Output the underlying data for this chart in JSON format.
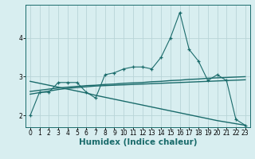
{
  "title": "",
  "xlabel": "Humidex (Indice chaleur)",
  "ylabel": "",
  "bg_color": "#d8eef0",
  "grid_color": "#b8d4d8",
  "line_color": "#1a6b6b",
  "x_values": [
    0,
    1,
    2,
    3,
    4,
    5,
    6,
    7,
    8,
    9,
    10,
    11,
    12,
    13,
    14,
    15,
    16,
    17,
    18,
    19,
    20,
    21,
    22,
    23
  ],
  "main_line": [
    2.0,
    2.6,
    2.6,
    2.85,
    2.85,
    2.85,
    2.6,
    2.45,
    3.05,
    3.1,
    3.2,
    3.25,
    3.25,
    3.2,
    3.5,
    4.0,
    4.65,
    3.7,
    3.4,
    2.9,
    3.05,
    2.9,
    1.9,
    1.75
  ],
  "smooth_line1": [
    2.55,
    2.59,
    2.63,
    2.67,
    2.7,
    2.72,
    2.74,
    2.76,
    2.77,
    2.78,
    2.79,
    2.8,
    2.81,
    2.82,
    2.83,
    2.84,
    2.85,
    2.86,
    2.87,
    2.88,
    2.89,
    2.9,
    2.91,
    2.92
  ],
  "smooth_line2": [
    2.62,
    2.65,
    2.68,
    2.71,
    2.73,
    2.75,
    2.77,
    2.78,
    2.8,
    2.81,
    2.83,
    2.84,
    2.85,
    2.87,
    2.88,
    2.9,
    2.91,
    2.93,
    2.94,
    2.96,
    2.97,
    2.98,
    2.99,
    3.0
  ],
  "diagonal_line": [
    2.88,
    2.83,
    2.78,
    2.73,
    2.68,
    2.63,
    2.58,
    2.52,
    2.47,
    2.42,
    2.37,
    2.32,
    2.27,
    2.22,
    2.17,
    2.12,
    2.07,
    2.02,
    1.97,
    1.92,
    1.87,
    1.83,
    1.79,
    1.75
  ],
  "ylim": [
    1.7,
    4.85
  ],
  "xlim": [
    -0.5,
    23.5
  ],
  "yticks": [
    2,
    3,
    4
  ],
  "xticks": [
    0,
    1,
    2,
    3,
    4,
    5,
    6,
    7,
    8,
    9,
    10,
    11,
    12,
    13,
    14,
    15,
    16,
    17,
    18,
    19,
    20,
    21,
    22,
    23
  ],
  "tick_fontsize": 5.5,
  "xlabel_fontsize": 7.5
}
